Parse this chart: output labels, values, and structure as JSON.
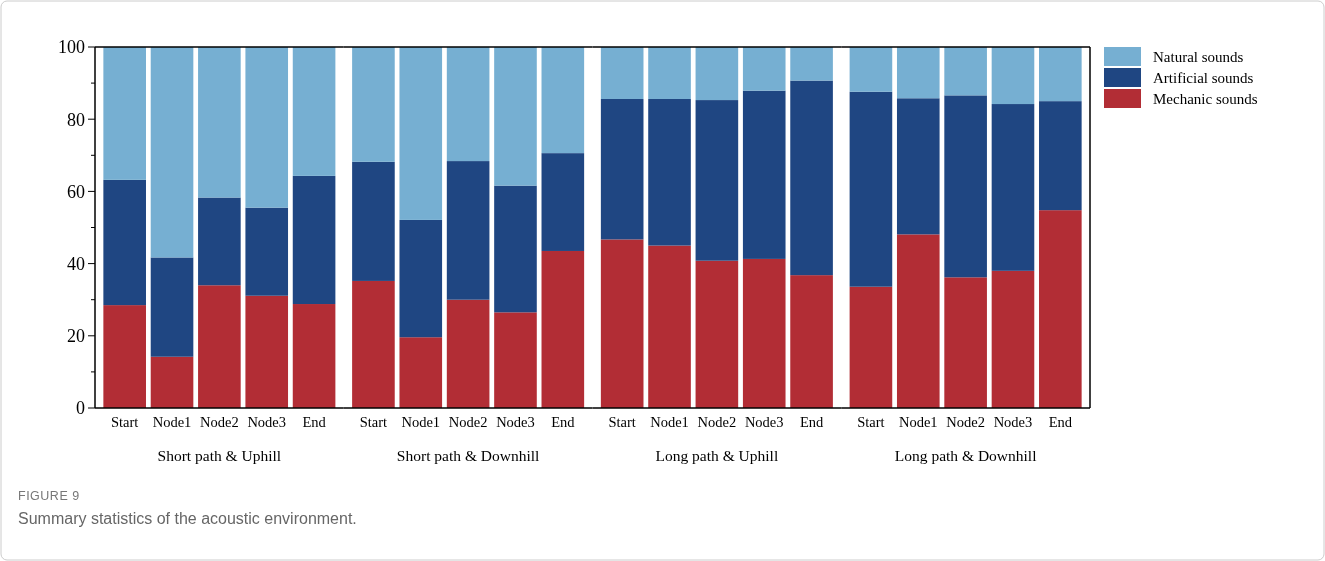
{
  "chart_data": [
    {
      "type": "bar",
      "stacked": true,
      "xlabel": "Short path & Uphill",
      "categories": [
        "Start",
        "Node1",
        "Node2",
        "Node3",
        "End"
      ],
      "ylim": [
        0,
        100
      ],
      "yticks": [
        0,
        {
          "value": 10,
          "label": null
        },
        20,
        {
          "value": 30,
          "label": null
        },
        40,
        {
          "value": 50,
          "label": null
        },
        60,
        {
          "value": 70,
          "label": null
        },
        80,
        {
          "value": 90,
          "label": null
        },
        100
      ],
      "grid": false,
      "annotations": [
        "FIGURE 9",
        "Summary statistics of the acoustic environment."
      ],
      "series": [
        {
          "color": "#b22d35",
          "values": [
            28.5,
            14.2,
            34.0,
            31.1,
            28.8
          ]
        },
        {
          "color": "#1f4682",
          "values": [
            34.7,
            27.5,
            24.3,
            24.4,
            35.5
          ]
        },
        {
          "color": "#76afd2",
          "values": [
            36.8,
            58.3,
            41.7,
            44.5,
            35.7
          ]
        }
      ]
    },
    {
      "type": "bar",
      "stacked": true,
      "xlabel": "Short path & Downhill",
      "categories": [
        "Start",
        "Node1",
        "Node2",
        "Node3",
        "End"
      ],
      "ylim": [
        0,
        100
      ],
      "tick_labels": "x",
      "series": [
        {
          "color": "#b22d35",
          "values": [
            35.2,
            19.6,
            30.0,
            26.5,
            43.5
          ]
        },
        {
          "color": "#1f4682",
          "values": [
            33.0,
            32.5,
            38.4,
            35.1,
            27.1
          ]
        },
        {
          "color": "#76afd2",
          "values": [
            31.8,
            47.9,
            31.6,
            38.4,
            29.4
          ]
        }
      ]
    },
    {
      "type": "bar",
      "stacked": true,
      "xlabel": "Long path & Uphill",
      "categories": [
        "Start",
        "Node1",
        "Node2",
        "Node3",
        "End"
      ],
      "ylim": [
        0,
        100
      ],
      "tick_labels": "x",
      "series": [
        {
          "color": "#b22d35",
          "values": [
            46.7,
            45.0,
            40.8,
            41.3,
            36.8
          ]
        },
        {
          "color": "#1f4682",
          "values": [
            38.9,
            40.6,
            44.5,
            46.6,
            53.9
          ]
        },
        {
          "color": "#76afd2",
          "values": [
            14.4,
            14.4,
            14.7,
            12.1,
            9.3
          ]
        }
      ]
    },
    {
      "type": "bar",
      "stacked": true,
      "xlabel": "Long path & Downhill",
      "categories": [
        "Start",
        "Node1",
        "Node2",
        "Node3",
        "End"
      ],
      "ylim": [
        0,
        100
      ],
      "tick_labels": "x",
      "legend": "right",
      "series": [
        {
          "name": "Mechanic sounds",
          "color": "#b22d35",
          "values": [
            33.6,
            48.1,
            36.2,
            38.0,
            54.8
          ]
        },
        {
          "name": "Artificial sounds",
          "color": "#1f4682",
          "values": [
            54.0,
            37.7,
            50.4,
            46.2,
            30.2
          ]
        },
        {
          "name": "Natural sounds",
          "color": "#76afd2",
          "values": [
            12.4,
            14.2,
            13.4,
            15.8,
            15.0
          ]
        }
      ]
    }
  ]
}
